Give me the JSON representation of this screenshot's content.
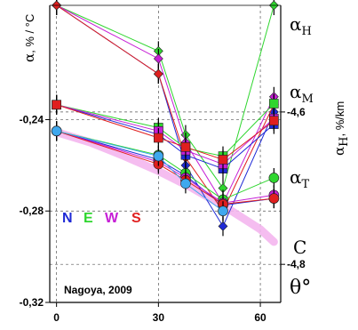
{
  "chart_data": {
    "type": "line",
    "x": [
      0,
      30,
      38,
      49,
      64
    ],
    "x_ticks": [
      "0",
      "30",
      "60"
    ],
    "xlim": [
      -2,
      66
    ],
    "left_axis": {
      "label_symbol": "α",
      "label_unit": ", % / °C",
      "ylim": [
        -0.32,
        -0.19
      ],
      "ticks": [
        "-0,24",
        "-0,28",
        "-0,32"
      ]
    },
    "right_axis": {
      "label_symbol": "α",
      "label_sub": "H",
      "label_unit": ", %/km",
      "ylim": [
        -4.85,
        -4.46
      ],
      "ticks": [
        "-4,6",
        "-4,8"
      ]
    },
    "grid": true,
    "colors": {
      "N": "#1f2ad6",
      "E": "#2fd62f",
      "W": "#c61fd6",
      "S": "#e01f1f",
      "theta": "#3fa8ee",
      "C": "#f4b6ee"
    },
    "groups": [
      {
        "name": "α",
        "sub": "H",
        "axis": "right",
        "marker": "diamond",
        "series": [
          {
            "name": "N",
            "values": [
              -4.46,
              -4.55,
              -4.67,
              -4.75,
              -4.6
            ]
          },
          {
            "name": "E",
            "values": [
              -4.46,
              -4.52,
              -4.63,
              -4.7,
              -4.46
            ]
          },
          {
            "name": "W",
            "values": [
              -4.46,
              -4.53,
              -4.64,
              -4.72,
              -4.58
            ]
          },
          {
            "name": "S",
            "values": [
              -4.46,
              -4.55,
              -4.66,
              -4.73,
              -4.59
            ]
          }
        ]
      },
      {
        "name": "α",
        "sub": "M",
        "axis": "left",
        "marker": "square",
        "series": [
          {
            "name": "N",
            "values": [
              -0.2335,
              -0.2465,
              -0.2555,
              -0.2615,
              -0.242
            ]
          },
          {
            "name": "E",
            "values": [
              -0.2335,
              -0.2435,
              -0.2525,
              -0.256,
              -0.233
            ]
          },
          {
            "name": "W",
            "values": [
              -0.2335,
              -0.245,
              -0.2535,
              -0.2595,
              -0.2395
            ]
          },
          {
            "name": "S",
            "values": [
              -0.2335,
              -0.248,
              -0.252,
              -0.2575,
              -0.2405
            ]
          }
        ]
      },
      {
        "name": "α",
        "sub": "T",
        "axis": "left",
        "marker": "circle",
        "series": [
          {
            "name": "N",
            "values": [
              -0.245,
              -0.2575,
              -0.2645,
              -0.2775,
              -0.2745
            ]
          },
          {
            "name": "E",
            "values": [
              -0.245,
              -0.2555,
              -0.2635,
              -0.275,
              -0.2655
            ]
          },
          {
            "name": "W",
            "values": [
              -0.245,
              -0.2585,
              -0.2655,
              -0.2765,
              -0.273
            ]
          },
          {
            "name": "S",
            "values": [
              -0.245,
              -0.2595,
              -0.2665,
              -0.277,
              -0.2745
            ]
          },
          {
            "name": "θ°",
            "values": [
              -0.245,
              -0.256,
              -0.268,
              -0.28,
              null
            ]
          }
        ]
      }
    ],
    "c_curve": {
      "label": "C",
      "x": [
        0,
        10,
        20,
        30,
        40,
        50,
        60,
        64
      ],
      "values": [
        -0.2455,
        -0.25,
        -0.256,
        -0.2625,
        -0.27,
        -0.2785,
        -0.288,
        -0.2935
      ]
    },
    "series_labels": {
      "c_label": "C",
      "theta_label": "θ°"
    },
    "legend": {
      "letters": [
        {
          "text": "N",
          "color": "#1f2ad6"
        },
        {
          "text": "E",
          "color": "#2fd62f"
        },
        {
          "text": "W",
          "color": "#c61fd6"
        },
        {
          "text": "S",
          "color": "#e01f1f"
        }
      ]
    },
    "annotation": "Nagoya, 2009"
  }
}
